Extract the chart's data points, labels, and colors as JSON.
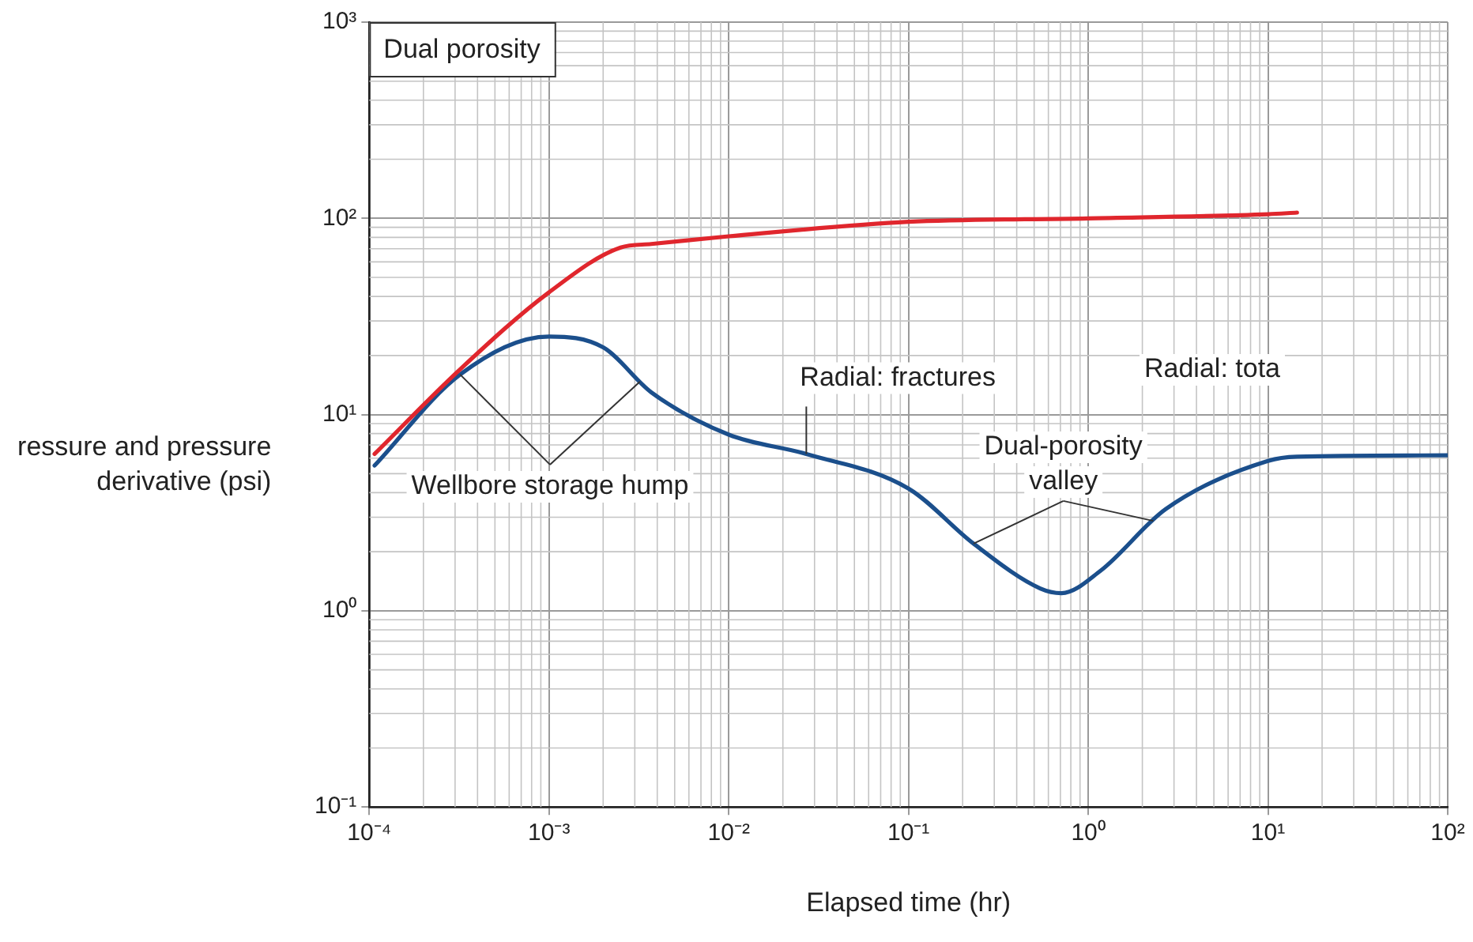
{
  "chart_data": {
    "type": "line",
    "xlabel": "Elapsed time (hr)",
    "ylabel": "ressure and pressure\nderivative (psi)",
    "log": "xy",
    "grid": true,
    "legend": false,
    "marker": "none",
    "line_style": "solid",
    "xlim": [
      0.0001,
      100
    ],
    "ylim": [
      0.1,
      1000
    ],
    "xticks": [
      {
        "value": 0.0001,
        "label": "10⁻⁴"
      },
      {
        "value": 0.001,
        "label": "10⁻³"
      },
      {
        "value": 0.01,
        "label": "10⁻²"
      },
      {
        "value": 0.1,
        "label": "10⁻¹"
      },
      {
        "value": 1,
        "label": "10⁰"
      },
      {
        "value": 10,
        "label": "10¹"
      },
      {
        "value": 100,
        "label": "10²"
      }
    ],
    "yticks": [
      {
        "value": 0.1,
        "label": "10⁻¹"
      },
      {
        "value": 1,
        "label": "10⁰"
      },
      {
        "value": 10,
        "label": "10¹"
      },
      {
        "value": 100,
        "label": "10²"
      },
      {
        "value": 1000,
        "label": "10³"
      }
    ],
    "series": [
      {
        "color": "#e0262d",
        "x": [
          0.000107,
          0.00032,
          0.001,
          0.0025,
          0.0037,
          0.01,
          0.1,
          1,
          10,
          14.5
        ],
        "values": [
          6.3,
          17,
          42,
          71,
          74,
          81,
          96,
          100,
          105,
          107
        ]
      },
      {
        "color": "#1b4f8c",
        "x": [
          0.000107,
          0.00032,
          0.001,
          0.002,
          0.0037,
          0.01,
          0.027,
          0.1,
          0.23,
          0.54,
          0.71,
          1.17,
          2.7,
          10,
          14.5,
          100
        ],
        "values": [
          5.5,
          16,
          25,
          22,
          13,
          7.9,
          6.3,
          4.2,
          2.2,
          1.3,
          1.23,
          1.6,
          3.3,
          5.8,
          6.1,
          6.2
        ]
      }
    ],
    "annotations": [
      "Dual porosity",
      {
        "text": "Wellbore storage hump",
        "x": 0.00032,
        "y": 16
      },
      {
        "text": "Radial: fractures",
        "x": 0.027,
        "y": 6.3
      },
      {
        "text": "Dual-porosity\nvalley",
        "x": 0.23,
        "y": 2.2
      },
      "Radial: tota"
    ]
  }
}
